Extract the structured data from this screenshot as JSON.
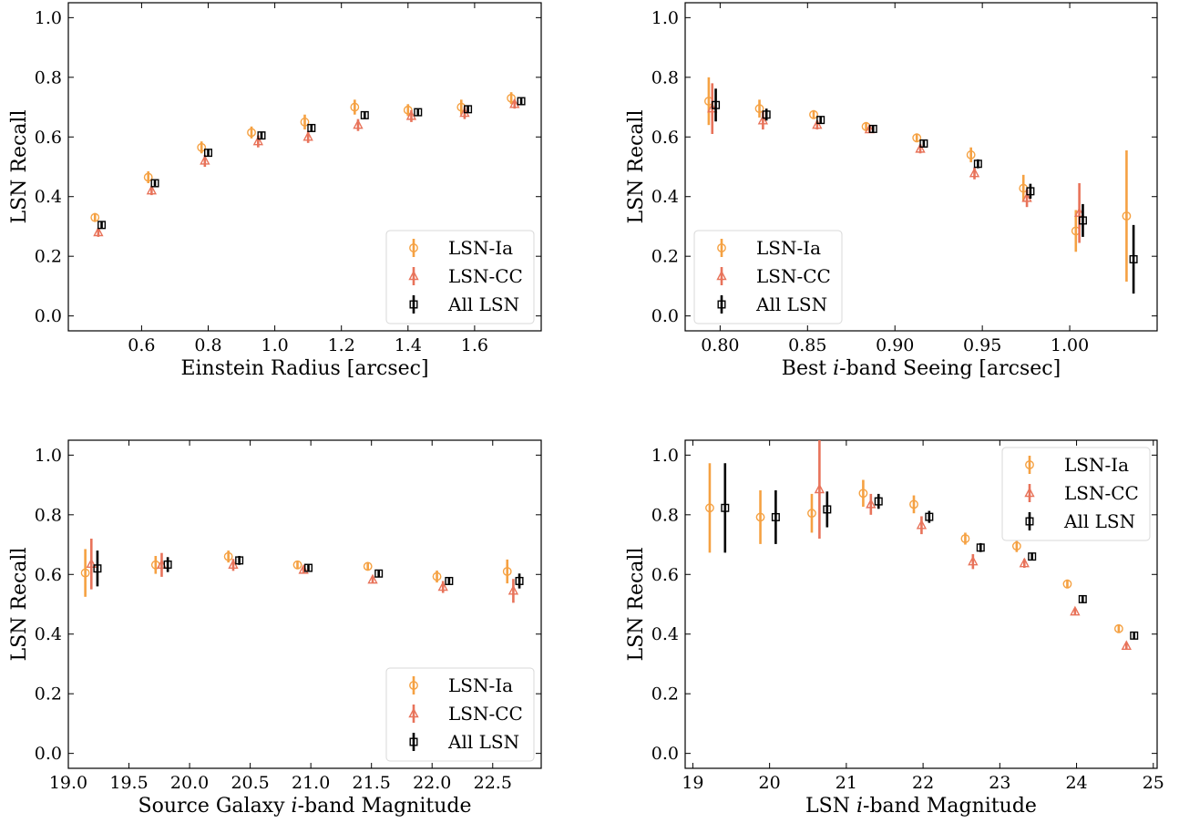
{
  "colors": {
    "ia": "#f5a142",
    "cc": "#e8735a",
    "all": "#000000"
  },
  "chart_data": [
    {
      "type": "scatter",
      "xlabel": "Einstein Radius [arcsec]",
      "ylabel": "LSN Recall",
      "xlim": [
        0.38,
        1.8
      ],
      "ylim": [
        -0.05,
        1.05
      ],
      "xticks": [
        0.6,
        0.8,
        1.0,
        1.2,
        1.4,
        1.6
      ],
      "xtick_labels": [
        "0.6",
        "0.8",
        "1.0",
        "1.2",
        "1.4",
        "1.6"
      ],
      "yticks": [
        0.0,
        0.2,
        0.4,
        0.6,
        0.8,
        1.0
      ],
      "ytick_labels": [
        "0.0",
        "0.2",
        "0.4",
        "0.6",
        "0.8",
        "1.0"
      ],
      "legend": "lower-right",
      "series": [
        {
          "name": "LSN-Ia",
          "marker": "circle",
          "x": [
            0.46,
            0.62,
            0.78,
            0.93,
            1.09,
            1.24,
            1.4,
            1.56,
            1.71
          ],
          "y": [
            0.33,
            0.465,
            0.565,
            0.615,
            0.65,
            0.7,
            0.69,
            0.7,
            0.73
          ],
          "err": [
            0.015,
            0.02,
            0.02,
            0.02,
            0.025,
            0.025,
            0.02,
            0.025,
            0.02
          ]
        },
        {
          "name": "LSN-CC",
          "marker": "triangle",
          "x": [
            0.47,
            0.63,
            0.79,
            0.95,
            1.1,
            1.25,
            1.41,
            1.57,
            1.72
          ],
          "y": [
            0.28,
            0.42,
            0.52,
            0.585,
            0.6,
            0.64,
            0.67,
            0.68,
            0.71
          ],
          "err": [
            0.015,
            0.015,
            0.02,
            0.02,
            0.02,
            0.02,
            0.02,
            0.02,
            0.015
          ]
        },
        {
          "name": "All LSN",
          "marker": "square",
          "x": [
            0.48,
            0.64,
            0.8,
            0.96,
            1.11,
            1.27,
            1.43,
            1.58,
            1.74
          ],
          "y": [
            0.305,
            0.445,
            0.547,
            0.605,
            0.63,
            0.673,
            0.683,
            0.693,
            0.72
          ],
          "err": [
            0.01,
            0.01,
            0.012,
            0.012,
            0.012,
            0.012,
            0.012,
            0.012,
            0.012
          ]
        }
      ]
    },
    {
      "type": "scatter",
      "xlabel": "Best i-band Seeing [arcsec]",
      "ylabel": "LSN Recall",
      "xlim": [
        0.78,
        1.05
      ],
      "ylim": [
        -0.05,
        1.05
      ],
      "xticks": [
        0.8,
        0.85,
        0.9,
        0.95,
        1.0
      ],
      "xtick_labels": [
        "0.80",
        "0.85",
        "0.90",
        "0.95",
        "1.00"
      ],
      "yticks": [
        0.0,
        0.2,
        0.4,
        0.6,
        0.8,
        1.0
      ],
      "ytick_labels": [
        "0.0",
        "0.2",
        "0.4",
        "0.6",
        "0.8",
        "1.0"
      ],
      "legend": "lower-left",
      "series": [
        {
          "name": "LSN-Ia",
          "marker": "circle",
          "x": [
            0.7935,
            0.8225,
            0.8535,
            0.8835,
            0.9125,
            0.9435,
            0.9735,
            1.0035,
            1.0325
          ],
          "y": [
            0.72,
            0.695,
            0.675,
            0.635,
            0.597,
            0.54,
            0.428,
            0.285,
            0.335
          ],
          "err": [
            0.08,
            0.03,
            0.015,
            0.015,
            0.015,
            0.025,
            0.045,
            0.07,
            0.22
          ]
        },
        {
          "name": "LSN-CC",
          "marker": "triangle",
          "x": [
            0.7955,
            0.8245,
            0.8555,
            0.8855,
            0.9145,
            0.9455,
            0.9755,
            1.0055,
            1.0345
          ],
          "y": [
            0.695,
            0.655,
            0.64,
            0.625,
            0.56,
            0.478,
            0.395,
            0.345,
            null
          ],
          "err": [
            0.085,
            0.03,
            0.015,
            0.012,
            0.015,
            0.02,
            0.03,
            0.1,
            null
          ]
        },
        {
          "name": "All LSN",
          "marker": "square",
          "x": [
            0.7975,
            0.8265,
            0.8575,
            0.8875,
            0.9165,
            0.9475,
            0.9775,
            1.0075,
            1.0365
          ],
          "y": [
            0.707,
            0.675,
            0.657,
            0.627,
            0.578,
            0.51,
            0.418,
            0.32,
            0.19
          ],
          "err": [
            0.055,
            0.02,
            0.012,
            0.012,
            0.012,
            0.015,
            0.025,
            0.055,
            0.115
          ]
        }
      ]
    },
    {
      "type": "scatter",
      "xlabel": "Source Galaxy i-band Magnitude",
      "ylabel": "LSN Recall",
      "xlim": [
        19.0,
        22.9
      ],
      "ylim": [
        -0.05,
        1.05
      ],
      "xticks": [
        19.0,
        19.5,
        20.0,
        20.5,
        21.0,
        21.5,
        22.0,
        22.5
      ],
      "xtick_labels": [
        "19.0",
        "19.5",
        "20.0",
        "20.5",
        "21.0",
        "21.5",
        "22.0",
        "22.5"
      ],
      "yticks": [
        0.0,
        0.2,
        0.4,
        0.6,
        0.8,
        1.0
      ],
      "ytick_labels": [
        "0.0",
        "0.2",
        "0.4",
        "0.6",
        "0.8",
        "1.0"
      ],
      "legend": "lower-right",
      "series": [
        {
          "name": "LSN-Ia",
          "marker": "circle",
          "x": [
            19.14,
            19.72,
            20.32,
            20.89,
            21.47,
            22.04,
            22.62
          ],
          "y": [
            0.605,
            0.632,
            0.66,
            0.632,
            0.627,
            0.593,
            0.61
          ],
          "err": [
            0.08,
            0.03,
            0.02,
            0.012,
            0.012,
            0.02,
            0.04
          ]
        },
        {
          "name": "LSN-CC",
          "marker": "triangle",
          "x": [
            19.19,
            19.77,
            20.36,
            20.94,
            21.51,
            22.09,
            22.67
          ],
          "y": [
            0.635,
            0.632,
            0.632,
            0.615,
            0.582,
            0.558,
            0.545
          ],
          "err": [
            0.085,
            0.04,
            0.02,
            0.012,
            0.012,
            0.02,
            0.04
          ]
        },
        {
          "name": "All LSN",
          "marker": "square",
          "x": [
            19.24,
            19.82,
            20.41,
            20.98,
            21.56,
            22.14,
            22.72
          ],
          "y": [
            0.62,
            0.633,
            0.647,
            0.622,
            0.603,
            0.578,
            0.578
          ],
          "err": [
            0.06,
            0.025,
            0.015,
            0.01,
            0.01,
            0.012,
            0.025
          ]
        }
      ]
    },
    {
      "type": "scatter",
      "xlabel": "LSN i-band Magnitude",
      "ylabel": "LSN Recall",
      "xlim": [
        18.9,
        25.05
      ],
      "ylim": [
        -0.05,
        1.05
      ],
      "xticks": [
        19,
        20,
        21,
        22,
        23,
        24,
        25
      ],
      "xtick_labels": [
        "19",
        "20",
        "21",
        "22",
        "23",
        "24",
        "25"
      ],
      "yticks": [
        0.0,
        0.2,
        0.4,
        0.6,
        0.8,
        1.0
      ],
      "ytick_labels": [
        "0.0",
        "0.2",
        "0.4",
        "0.6",
        "0.8",
        "1.0"
      ],
      "legend": "upper-right",
      "series": [
        {
          "name": "LSN-Ia",
          "marker": "circle",
          "x": [
            19.22,
            19.88,
            20.55,
            21.22,
            21.88,
            22.55,
            23.22,
            23.88,
            24.55
          ],
          "y": [
            0.823,
            0.792,
            0.805,
            0.872,
            0.835,
            0.72,
            0.695,
            0.568,
            0.418
          ],
          "err": [
            0.15,
            0.09,
            0.065,
            0.045,
            0.03,
            0.02,
            0.02,
            0.015,
            0.012
          ]
        },
        {
          "name": "LSN-CC",
          "marker": "triangle",
          "x": [
            19.32,
            19.98,
            20.65,
            21.32,
            21.98,
            22.65,
            23.32,
            23.98,
            24.65
          ],
          "y": [
            null,
            null,
            0.885,
            0.835,
            0.765,
            0.643,
            0.637,
            0.475,
            0.36
          ],
          "err": [
            null,
            null,
            0.165,
            0.035,
            0.03,
            0.025,
            0.015,
            0.012,
            0.012
          ]
        },
        {
          "name": "All LSN",
          "marker": "square",
          "x": [
            19.42,
            20.08,
            20.75,
            21.42,
            22.08,
            22.75,
            23.42,
            24.08,
            24.75
          ],
          "y": [
            0.823,
            0.792,
            0.818,
            0.845,
            0.793,
            0.69,
            0.66,
            0.517,
            0.395
          ],
          "err": [
            0.15,
            0.09,
            0.06,
            0.025,
            0.02,
            0.015,
            0.012,
            0.01,
            0.01
          ]
        }
      ]
    }
  ]
}
